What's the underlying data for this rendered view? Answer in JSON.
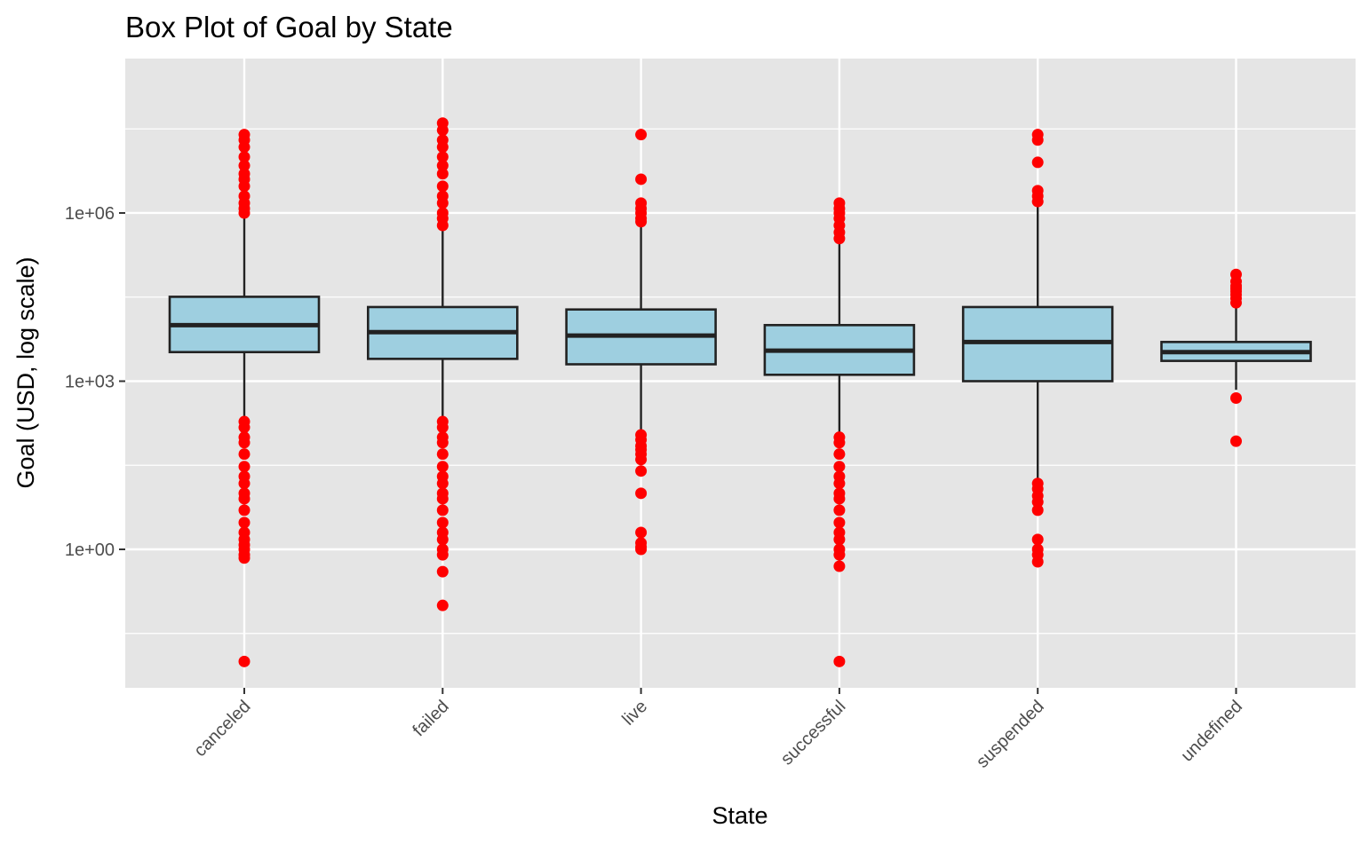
{
  "chart_data": {
    "type": "boxplot",
    "title": "Box Plot of Goal by State",
    "xlabel": "State",
    "ylabel": "Goal (USD, log scale)",
    "y_scale": "log10",
    "ylim": [
      0.008,
      100000000
    ],
    "y_ticks": [
      {
        "value": 1,
        "label": "1e+00"
      },
      {
        "value": 1000,
        "label": "1e+03"
      },
      {
        "value": 1000000,
        "label": "1e+06"
      }
    ],
    "y_minor_ticks": [
      0.03162,
      31.62,
      31623,
      31622777
    ],
    "categories": [
      "canceled",
      "failed",
      "live",
      "successful",
      "suspended",
      "undefined"
    ],
    "grid": true,
    "legend": "none",
    "colors": {
      "panel_background": "#e5e5e5",
      "grid": "#ffffff",
      "box_fill": "#9ecfe0",
      "box_stroke": "#222222",
      "outlier": "#ff0000"
    },
    "boxes": [
      {
        "category": "canceled",
        "whisker_low": 200,
        "q1": 3300,
        "median": 10000,
        "q3": 32000,
        "whisker_high": 900000,
        "outliers": [
          0.01,
          0.7,
          0.8,
          1.0,
          1.2,
          1.5,
          2,
          3,
          5,
          8,
          10,
          15,
          20,
          30,
          50,
          80,
          100,
          150,
          190,
          1000000,
          1200000,
          1500000,
          2000000,
          3000000,
          4000000,
          5000000,
          7000000,
          10000000,
          15000000,
          20000000,
          25000000
        ]
      },
      {
        "category": "failed",
        "whisker_low": 200,
        "q1": 2500,
        "median": 7500,
        "q3": 21000,
        "whisker_high": 580000,
        "outliers": [
          0.1,
          0.4,
          0.8,
          1.0,
          1.5,
          2,
          3,
          5,
          8,
          10,
          15,
          20,
          30,
          50,
          80,
          100,
          150,
          190,
          600000,
          800000,
          1000000,
          1500000,
          2000000,
          3000000,
          5000000,
          7000000,
          10000000,
          15000000,
          20000000,
          30000000,
          40000000
        ]
      },
      {
        "category": "live",
        "whisker_low": 100,
        "q1": 2000,
        "median": 6500,
        "q3": 19000,
        "whisker_high": 650000,
        "outliers": [
          1.0,
          1.1,
          1.3,
          2,
          10,
          25,
          40,
          50,
          60,
          70,
          90,
          110,
          700000,
          800000,
          1000000,
          1200000,
          1500000,
          4000000,
          25000000
        ]
      },
      {
        "category": "successful",
        "whisker_low": 100,
        "q1": 1300,
        "median": 3500,
        "q3": 10000,
        "whisker_high": 320000,
        "outliers": [
          0.01,
          0.5,
          0.8,
          1.0,
          1.5,
          2,
          3,
          5,
          8,
          10,
          15,
          20,
          30,
          50,
          80,
          100,
          350000,
          450000,
          600000,
          800000,
          1000000,
          1200000,
          1500000
        ]
      },
      {
        "category": "suspended",
        "whisker_low": 15,
        "q1": 1000,
        "median": 5000,
        "q3": 21000,
        "whisker_high": 1500000,
        "outliers": [
          0.6,
          0.8,
          1.0,
          1.5,
          5,
          7,
          9,
          12,
          15,
          1600000,
          2000000,
          2500000,
          8000000,
          20000000,
          25000000
        ]
      },
      {
        "category": "undefined",
        "whisker_low": 700,
        "q1": 2300,
        "median": 3300,
        "q3": 5000,
        "whisker_high": 22000,
        "outliers": [
          85,
          500,
          25000,
          30000,
          35000,
          40000,
          45000,
          50000,
          60000,
          80000
        ]
      }
    ]
  }
}
